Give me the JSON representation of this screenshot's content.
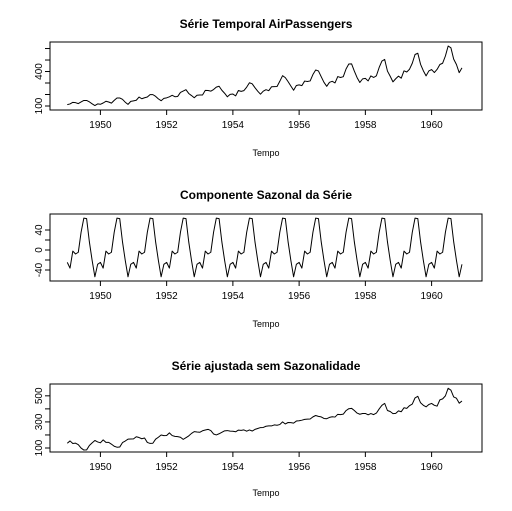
{
  "chart_data": [
    {
      "type": "line",
      "title": "Série Temporal AirPassengers",
      "xlabel": "Tempo",
      "ylabel": "",
      "xlim": [
        1949,
        1961
      ],
      "ylim": [
        100,
        622
      ],
      "xticks": [
        1950,
        1952,
        1954,
        1956,
        1958,
        1960
      ],
      "yticks": [
        100,
        200,
        300,
        400,
        500,
        600
      ],
      "ytick_labels": [
        "100",
        "",
        "",
        "400",
        "",
        ""
      ],
      "x_start": 1949,
      "frequency": 12,
      "values": [
        112,
        118,
        132,
        129,
        121,
        135,
        148,
        148,
        136,
        119,
        104,
        118,
        115,
        126,
        141,
        135,
        125,
        149,
        170,
        170,
        158,
        133,
        114,
        140,
        145,
        150,
        178,
        163,
        172,
        178,
        199,
        199,
        184,
        162,
        146,
        166,
        171,
        180,
        193,
        181,
        183,
        218,
        230,
        242,
        209,
        191,
        172,
        194,
        196,
        196,
        236,
        235,
        229,
        243,
        264,
        272,
        237,
        211,
        180,
        201,
        204,
        188,
        235,
        227,
        234,
        264,
        302,
        293,
        259,
        229,
        203,
        229,
        242,
        233,
        267,
        269,
        270,
        315,
        364,
        347,
        312,
        274,
        237,
        278,
        284,
        277,
        317,
        313,
        318,
        374,
        413,
        405,
        355,
        306,
        271,
        306,
        315,
        301,
        356,
        348,
        355,
        422,
        465,
        467,
        404,
        347,
        305,
        336,
        340,
        318,
        362,
        348,
        363,
        435,
        491,
        505,
        404,
        359,
        310,
        337,
        360,
        342,
        406,
        396,
        420,
        472,
        548,
        559,
        463,
        407,
        362,
        405,
        417,
        391,
        419,
        461,
        472,
        535,
        622,
        606,
        508,
        461,
        390,
        432
      ]
    },
    {
      "type": "line",
      "title": "Componente Sazonal da Série",
      "xlabel": "Tempo",
      "ylabel": "",
      "xlim": [
        1949,
        1961
      ],
      "ylim": [
        -54,
        64
      ],
      "xticks": [
        1950,
        1952,
        1954,
        1956,
        1958,
        1960
      ],
      "yticks": [
        -40,
        -20,
        0,
        20,
        40
      ],
      "ytick_labels": [
        "-40",
        "",
        "0",
        "",
        "40"
      ],
      "x_start": 1949,
      "frequency": 12,
      "pattern": [
        -24.7,
        -36.2,
        -2.2,
        -8.0,
        -4.5,
        35.4,
        63.8,
        62.8,
        16.5,
        -20.6,
        -53.6,
        -28.6
      ]
    },
    {
      "type": "line",
      "title": "Série ajustada sem Sazonalidade",
      "xlabel": "Tempo",
      "ylabel": "",
      "xlim": [
        1949,
        1961
      ],
      "ylim": [
        100,
        560
      ],
      "xticks": [
        1950,
        1952,
        1954,
        1956,
        1958,
        1960
      ],
      "yticks": [
        100,
        200,
        300,
        400,
        500
      ],
      "ytick_labels": [
        "100",
        "",
        "300",
        "",
        "500"
      ],
      "x_start": 1949,
      "frequency": 12
    }
  ]
}
